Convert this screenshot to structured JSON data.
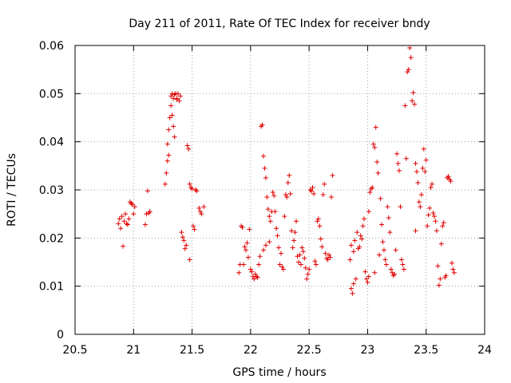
{
  "chart_data": {
    "type": "scatter",
    "title": "Day 211 of 2011, Rate Of TEC Index for receiver bndy",
    "xlabel": "GPS time / hours",
    "ylabel": "ROTI / TECUs",
    "xlim": [
      20.5,
      24
    ],
    "ylim": [
      0,
      0.06
    ],
    "x_ticks": [
      20.5,
      21,
      21.5,
      22,
      22.5,
      23,
      23.5,
      24
    ],
    "x_tick_labels": [
      "20.5",
      "21",
      "21.5",
      "22",
      "22.5",
      "23",
      "23.5",
      "24"
    ],
    "y_ticks": [
      0,
      0.01,
      0.02,
      0.03,
      0.04,
      0.05,
      0.06
    ],
    "y_tick_labels": [
      "0",
      "0.01",
      "0.02",
      "0.03",
      "0.04",
      "0.05",
      "0.06"
    ],
    "grid": true,
    "marker": "+",
    "series_color": "#e00000",
    "series": [
      {
        "name": "ROTI",
        "points": [
          [
            20.87,
            0.023
          ],
          [
            20.88,
            0.024
          ],
          [
            20.89,
            0.022
          ],
          [
            20.9,
            0.0245
          ],
          [
            20.91,
            0.0183
          ],
          [
            20.92,
            0.0235
          ],
          [
            20.93,
            0.025
          ],
          [
            20.94,
            0.023
          ],
          [
            20.95,
            0.0228
          ],
          [
            20.96,
            0.024
          ],
          [
            20.97,
            0.0275
          ],
          [
            20.98,
            0.0272
          ],
          [
            20.99,
            0.027
          ],
          [
            21.0,
            0.025
          ],
          [
            21.01,
            0.0265
          ],
          [
            21.1,
            0.0228
          ],
          [
            21.11,
            0.025
          ],
          [
            21.12,
            0.0298
          ],
          [
            21.13,
            0.0252
          ],
          [
            21.14,
            0.0255
          ],
          [
            21.27,
            0.0312
          ],
          [
            21.28,
            0.0335
          ],
          [
            21.29,
            0.036
          ],
          [
            21.29,
            0.0395
          ],
          [
            21.3,
            0.0372
          ],
          [
            21.3,
            0.0425
          ],
          [
            21.31,
            0.045
          ],
          [
            21.32,
            0.0495
          ],
          [
            21.32,
            0.0475
          ],
          [
            21.33,
            0.0455
          ],
          [
            21.33,
            0.05
          ],
          [
            21.34,
            0.049
          ],
          [
            21.34,
            0.0432
          ],
          [
            21.35,
            0.0498
          ],
          [
            21.35,
            0.041
          ],
          [
            21.36,
            0.05
          ],
          [
            21.37,
            0.0488
          ],
          [
            21.37,
            0.049
          ],
          [
            21.38,
            0.05
          ],
          [
            21.39,
            0.0485
          ],
          [
            21.4,
            0.0495
          ],
          [
            21.41,
            0.0212
          ],
          [
            21.42,
            0.0202
          ],
          [
            21.43,
            0.0195
          ],
          [
            21.44,
            0.0178
          ],
          [
            21.45,
            0.0185
          ],
          [
            21.46,
            0.0392
          ],
          [
            21.47,
            0.0385
          ],
          [
            21.48,
            0.0312
          ],
          [
            21.48,
            0.0155
          ],
          [
            21.49,
            0.0305
          ],
          [
            21.5,
            0.0302
          ],
          [
            21.51,
            0.0225
          ],
          [
            21.52,
            0.0218
          ],
          [
            21.53,
            0.03
          ],
          [
            21.54,
            0.0298
          ],
          [
            21.56,
            0.0262
          ],
          [
            21.57,
            0.0255
          ],
          [
            21.58,
            0.025
          ],
          [
            21.6,
            0.0265
          ],
          [
            21.9,
            0.0128
          ],
          [
            21.91,
            0.0145
          ],
          [
            21.92,
            0.0225
          ],
          [
            21.93,
            0.0222
          ],
          [
            21.94,
            0.0145
          ],
          [
            21.95,
            0.0182
          ],
          [
            21.96,
            0.0175
          ],
          [
            21.97,
            0.019
          ],
          [
            21.98,
            0.016
          ],
          [
            21.99,
            0.0218
          ],
          [
            22.0,
            0.0135
          ],
          [
            22.01,
            0.013
          ],
          [
            22.02,
            0.012
          ],
          [
            22.03,
            0.0115
          ],
          [
            22.04,
            0.0125
          ],
          [
            22.05,
            0.012
          ],
          [
            22.06,
            0.0118
          ],
          [
            22.07,
            0.0145
          ],
          [
            22.08,
            0.0162
          ],
          [
            22.09,
            0.0432
          ],
          [
            22.1,
            0.0435
          ],
          [
            22.11,
            0.037
          ],
          [
            22.11,
            0.0175
          ],
          [
            22.12,
            0.0345
          ],
          [
            22.13,
            0.0325
          ],
          [
            22.13,
            0.0185
          ],
          [
            22.14,
            0.0285
          ],
          [
            22.15,
            0.026
          ],
          [
            22.16,
            0.0245
          ],
          [
            22.16,
            0.0192
          ],
          [
            22.17,
            0.0235
          ],
          [
            22.18,
            0.0255
          ],
          [
            22.19,
            0.0295
          ],
          [
            22.2,
            0.0288
          ],
          [
            22.21,
            0.0255
          ],
          [
            22.22,
            0.022
          ],
          [
            22.23,
            0.0205
          ],
          [
            22.24,
            0.018
          ],
          [
            22.25,
            0.0145
          ],
          [
            22.26,
            0.0168
          ],
          [
            22.27,
            0.014
          ],
          [
            22.28,
            0.0135
          ],
          [
            22.29,
            0.0245
          ],
          [
            22.3,
            0.029
          ],
          [
            22.31,
            0.0285
          ],
          [
            22.32,
            0.0315
          ],
          [
            22.33,
            0.033
          ],
          [
            22.34,
            0.0292
          ],
          [
            22.35,
            0.0215
          ],
          [
            22.36,
            0.018
          ],
          [
            22.37,
            0.0195
          ],
          [
            22.38,
            0.0212
          ],
          [
            22.39,
            0.0235
          ],
          [
            22.4,
            0.0162
          ],
          [
            22.41,
            0.015
          ],
          [
            22.42,
            0.0165
          ],
          [
            22.43,
            0.0145
          ],
          [
            22.44,
            0.018
          ],
          [
            22.45,
            0.0172
          ],
          [
            22.46,
            0.0158
          ],
          [
            22.47,
            0.0138
          ],
          [
            22.48,
            0.0115
          ],
          [
            22.49,
            0.0125
          ],
          [
            22.5,
            0.0135
          ],
          [
            22.51,
            0.03
          ],
          [
            22.52,
            0.0298
          ],
          [
            22.53,
            0.0305
          ],
          [
            22.54,
            0.0292
          ],
          [
            22.55,
            0.0152
          ],
          [
            22.56,
            0.0145
          ],
          [
            22.57,
            0.0235
          ],
          [
            22.58,
            0.024
          ],
          [
            22.59,
            0.0225
          ],
          [
            22.6,
            0.0198
          ],
          [
            22.61,
            0.0182
          ],
          [
            22.62,
            0.029
          ],
          [
            22.63,
            0.0312
          ],
          [
            22.64,
            0.0168
          ],
          [
            22.65,
            0.0158
          ],
          [
            22.66,
            0.0155
          ],
          [
            22.67,
            0.0165
          ],
          [
            22.68,
            0.016
          ],
          [
            22.69,
            0.0285
          ],
          [
            22.7,
            0.033
          ],
          [
            22.85,
            0.0155
          ],
          [
            22.86,
            0.0185
          ],
          [
            22.86,
            0.0095
          ],
          [
            22.87,
            0.0085
          ],
          [
            22.88,
            0.0172
          ],
          [
            22.88,
            0.0105
          ],
          [
            22.89,
            0.0195
          ],
          [
            22.9,
            0.0115
          ],
          [
            22.91,
            0.0212
          ],
          [
            22.92,
            0.0178
          ],
          [
            22.93,
            0.0182
          ],
          [
            22.94,
            0.0205
          ],
          [
            22.95,
            0.0198
          ],
          [
            22.96,
            0.0225
          ],
          [
            22.97,
            0.024
          ],
          [
            22.98,
            0.013
          ],
          [
            22.99,
            0.0115
          ],
          [
            23.0,
            0.0108
          ],
          [
            23.01,
            0.0255
          ],
          [
            23.01,
            0.012
          ],
          [
            23.02,
            0.0295
          ],
          [
            23.03,
            0.0302
          ],
          [
            23.04,
            0.0305
          ],
          [
            23.05,
            0.0395
          ],
          [
            23.06,
            0.0388
          ],
          [
            23.06,
            0.0128
          ],
          [
            23.07,
            0.043
          ],
          [
            23.08,
            0.0358
          ],
          [
            23.09,
            0.0335
          ],
          [
            23.1,
            0.0165
          ],
          [
            23.11,
            0.0282
          ],
          [
            23.12,
            0.0228
          ],
          [
            23.13,
            0.0192
          ],
          [
            23.14,
            0.0175
          ],
          [
            23.15,
            0.0155
          ],
          [
            23.16,
            0.0145
          ],
          [
            23.17,
            0.0265
          ],
          [
            23.18,
            0.0242
          ],
          [
            23.19,
            0.0212
          ],
          [
            23.2,
            0.0135
          ],
          [
            23.21,
            0.0128
          ],
          [
            23.22,
            0.0122
          ],
          [
            23.23,
            0.0125
          ],
          [
            23.24,
            0.0175
          ],
          [
            23.25,
            0.0375
          ],
          [
            23.26,
            0.0355
          ],
          [
            23.27,
            0.034
          ],
          [
            23.28,
            0.0265
          ],
          [
            23.29,
            0.0155
          ],
          [
            23.3,
            0.0145
          ],
          [
            23.31,
            0.0135
          ],
          [
            23.32,
            0.0475
          ],
          [
            23.33,
            0.0365
          ],
          [
            23.34,
            0.0545
          ],
          [
            23.35,
            0.055
          ],
          [
            23.36,
            0.0595
          ],
          [
            23.37,
            0.0575
          ],
          [
            23.38,
            0.0485
          ],
          [
            23.39,
            0.0502
          ],
          [
            23.4,
            0.0478
          ],
          [
            23.41,
            0.0355
          ],
          [
            23.41,
            0.0215
          ],
          [
            23.42,
            0.0338
          ],
          [
            23.43,
            0.0315
          ],
          [
            23.44,
            0.0275
          ],
          [
            23.45,
            0.0265
          ],
          [
            23.46,
            0.029
          ],
          [
            23.47,
            0.0345
          ],
          [
            23.48,
            0.0385
          ],
          [
            23.49,
            0.0338
          ],
          [
            23.5,
            0.0362
          ],
          [
            23.51,
            0.0225
          ],
          [
            23.52,
            0.0248
          ],
          [
            23.53,
            0.0262
          ],
          [
            23.54,
            0.0305
          ],
          [
            23.55,
            0.0312
          ],
          [
            23.56,
            0.0252
          ],
          [
            23.57,
            0.0245
          ],
          [
            23.58,
            0.0235
          ],
          [
            23.59,
            0.0215
          ],
          [
            23.6,
            0.0142
          ],
          [
            23.61,
            0.0102
          ],
          [
            23.62,
            0.0115
          ],
          [
            23.63,
            0.0188
          ],
          [
            23.64,
            0.0225
          ],
          [
            23.65,
            0.0232
          ],
          [
            23.66,
            0.0118
          ],
          [
            23.67,
            0.0122
          ],
          [
            23.68,
            0.0325
          ],
          [
            23.69,
            0.0328
          ],
          [
            23.7,
            0.0322
          ],
          [
            23.71,
            0.0318
          ],
          [
            23.72,
            0.0148
          ],
          [
            23.73,
            0.0135
          ],
          [
            23.74,
            0.0128
          ]
        ]
      }
    ]
  }
}
